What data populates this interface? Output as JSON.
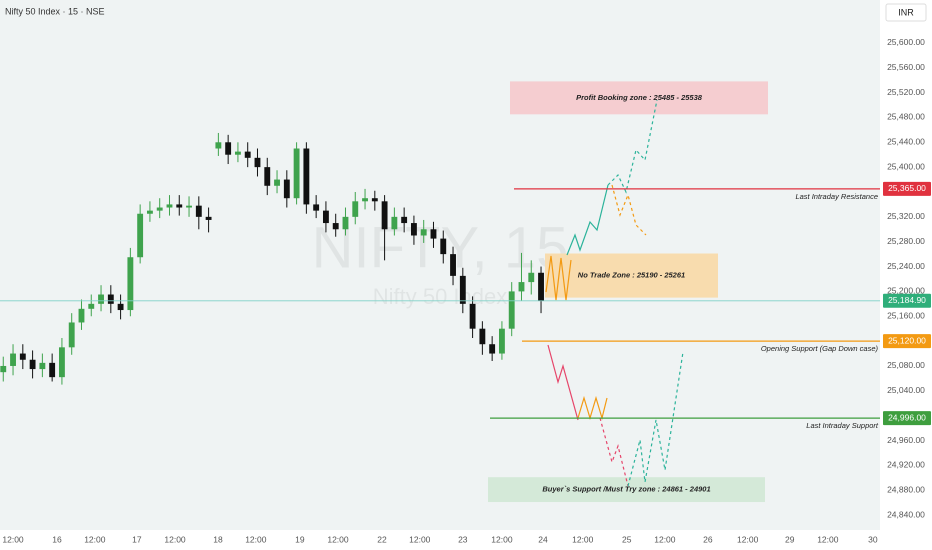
{
  "chart_data": {
    "type": "candlestick",
    "title": "Nifty 50 Index · 15 · NSE",
    "currency": "INR",
    "watermark": {
      "symbol": "NIFTY, 15",
      "name": "Nifty 50 Index"
    },
    "x": [
      1,
      4,
      7,
      10,
      13,
      16,
      19,
      22,
      25,
      28,
      31,
      34,
      37,
      40,
      43,
      46,
      49,
      52,
      55,
      58,
      61,
      64,
      67,
      70,
      73,
      76,
      79,
      82,
      85,
      88,
      91,
      94,
      97,
      100,
      103,
      106,
      109,
      112,
      115,
      118,
      121,
      124,
      127,
      130,
      133,
      136,
      139,
      142,
      145,
      148,
      151,
      154,
      157,
      160,
      163,
      166
    ],
    "open": [
      25070,
      25080,
      25100,
      25090,
      25075,
      25085,
      25062,
      25110,
      25150,
      25172,
      25180,
      25195,
      25180,
      25170,
      25255,
      25325,
      25330,
      25335,
      25340,
      25335,
      25338,
      25320,
      25430,
      25440,
      25420,
      25425,
      25415,
      25400,
      25370,
      25380,
      25350,
      25430,
      25340,
      25330,
      25310,
      25300,
      25320,
      25345,
      25350,
      25345,
      25300,
      25320,
      25310,
      25290,
      25300,
      25285,
      25260,
      25225,
      25180,
      25140,
      25115,
      25100,
      25140,
      25200,
      25215,
      25230
    ],
    "high": [
      25095,
      25115,
      25115,
      25105,
      25100,
      25100,
      25125,
      25165,
      25187,
      25195,
      25210,
      25210,
      25195,
      25270,
      25340,
      25345,
      25350,
      25355,
      25355,
      25353,
      25353,
      25335,
      25455,
      25452,
      25440,
      25440,
      25430,
      25415,
      25395,
      25395,
      25440,
      25440,
      25355,
      25345,
      25325,
      25335,
      25360,
      25365,
      25362,
      25355,
      25335,
      25335,
      25322,
      25315,
      25312,
      25298,
      25272,
      25238,
      25192,
      25152,
      25128,
      25152,
      25215,
      25262,
      25250,
      25240
    ],
    "low": [
      25055,
      25065,
      25075,
      25060,
      25062,
      25055,
      25050,
      25098,
      25138,
      25160,
      25168,
      25165,
      25155,
      25160,
      25245,
      25312,
      25318,
      25322,
      25322,
      25320,
      25300,
      25295,
      25418,
      25405,
      25408,
      25400,
      25385,
      25355,
      25358,
      25335,
      25340,
      25325,
      25318,
      25295,
      25288,
      25290,
      25308,
      25332,
      25330,
      25250,
      25290,
      25295,
      25275,
      25278,
      25270,
      25245,
      25210,
      25165,
      25125,
      25098,
      25088,
      25090,
      25128,
      25185,
      25195,
      25165
    ],
    "close": [
      25080,
      25100,
      25090,
      25075,
      25085,
      25062,
      25110,
      25150,
      25172,
      25180,
      25195,
      25180,
      25170,
      25255,
      25325,
      25330,
      25335,
      25340,
      25335,
      25338,
      25320,
      25315,
      25440,
      25420,
      25425,
      25415,
      25400,
      25370,
      25380,
      25350,
      25430,
      25340,
      25330,
      25310,
      25300,
      25320,
      25345,
      25350,
      25345,
      25300,
      25320,
      25310,
      25290,
      25300,
      25285,
      25260,
      25225,
      25180,
      25140,
      25115,
      25100,
      25140,
      25200,
      25215,
      25230,
      25184.9
    ],
    "up_color": "#3fa34d",
    "down_color": "#111111",
    "xlim": [
      0,
      270
    ],
    "xticks": [
      {
        "value": 4,
        "label": "12:00"
      },
      {
        "value": 17.5,
        "label": "16"
      },
      {
        "value": 29.1,
        "label": "12:00"
      },
      {
        "value": 42,
        "label": "17"
      },
      {
        "value": 53.7,
        "label": "12:00"
      },
      {
        "value": 66.9,
        "label": "18"
      },
      {
        "value": 78.5,
        "label": "12:00"
      },
      {
        "value": 92,
        "label": "19"
      },
      {
        "value": 103.7,
        "label": "12:00"
      },
      {
        "value": 117.2,
        "label": "22"
      },
      {
        "value": 128.8,
        "label": "12:00"
      },
      {
        "value": 142,
        "label": "23"
      },
      {
        "value": 154,
        "label": "12:00"
      },
      {
        "value": 166.6,
        "label": "24"
      },
      {
        "value": 178.8,
        "label": "12:00"
      },
      {
        "value": 192.3,
        "label": "25"
      },
      {
        "value": 204,
        "label": "12:00"
      },
      {
        "value": 217.2,
        "label": "26"
      },
      {
        "value": 229.4,
        "label": "12:00"
      },
      {
        "value": 242.3,
        "label": "29"
      },
      {
        "value": 254,
        "label": "12:00"
      },
      {
        "value": 267.8,
        "label": "30"
      }
    ],
    "ylim": [
      24816,
      25669
    ],
    "yticks": [
      {
        "value": 24840,
        "label": "24,840.00"
      },
      {
        "value": 24880,
        "label": "24,880.00"
      },
      {
        "value": 24920,
        "label": "24,920.00"
      },
      {
        "value": 24960,
        "label": "24,960.00"
      },
      {
        "value": 25040,
        "label": "25,040.00"
      },
      {
        "value": 25080,
        "label": "25,080.00"
      },
      {
        "value": 25160,
        "label": "25,160.00"
      },
      {
        "value": 25200,
        "label": "25,200.00"
      },
      {
        "value": 25240,
        "label": "25,240.00"
      },
      {
        "value": 25280,
        "label": "25,280.00"
      },
      {
        "value": 25320,
        "label": "25,320.00"
      },
      {
        "value": 25400,
        "label": "25,400.00"
      },
      {
        "value": 25440,
        "label": "25,440.00"
      },
      {
        "value": 25480,
        "label": "25,480.00"
      },
      {
        "value": 25520,
        "label": "25,520.00"
      },
      {
        "value": 25560,
        "label": "25,560.00"
      },
      {
        "value": 25600,
        "label": "25,600.00"
      }
    ],
    "last_price": {
      "value": 25184.9,
      "label": "25,184.90",
      "color": "#2fae7a"
    },
    "levels": [
      {
        "name": "Last Intraday Resistance",
        "value": 25365,
        "label": "25,365.00",
        "color": "#e0323f"
      },
      {
        "name": "Opening Support (Gap Down case)",
        "value": 25120,
        "label": "25,120.00",
        "color": "#f39a12"
      },
      {
        "name": "Last Intraday Support",
        "value": 24996,
        "label": "24,996.00",
        "color": "#3e9e3e"
      }
    ],
    "zones": [
      {
        "name": "Profit Booking zone : 25485 - 25538",
        "low": 25485,
        "high": 25538,
        "color": "#f5cdd0"
      },
      {
        "name": "No Trade Zone : 25190 - 25261",
        "low": 25190,
        "high": 25261,
        "color": "#f8dcae"
      },
      {
        "name": "Buyer`s Support /Must Try zone :  24861 - 24901",
        "low": 24861,
        "high": 24901,
        "color": "#d4e9d8"
      }
    ]
  }
}
